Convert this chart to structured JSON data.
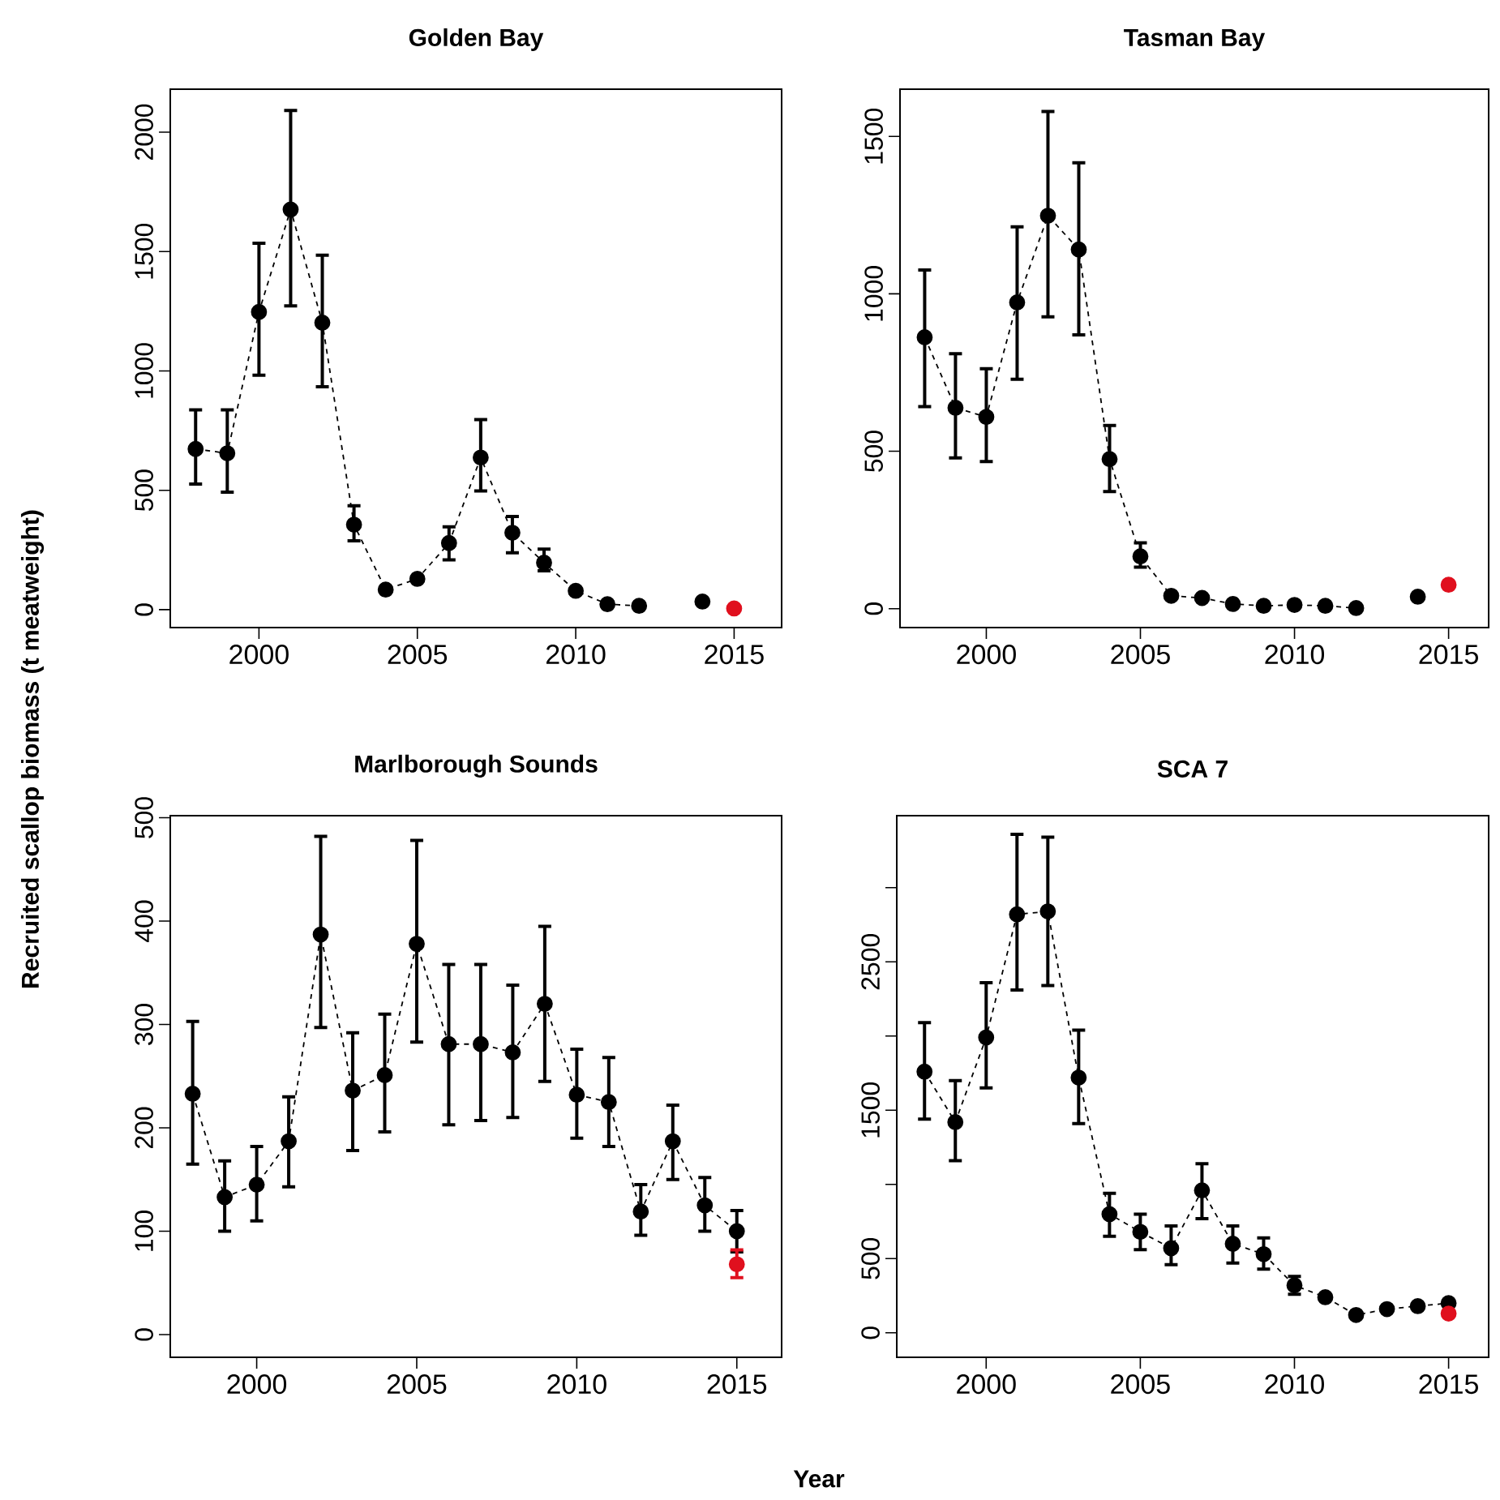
{
  "chart_data": [
    {
      "type": "line",
      "title": "Golden Bay",
      "ylabel": "Recruited scallop biomass (t meatweight)",
      "marker": "circle",
      "line_style": "dashed",
      "xlim": [
        1997.2,
        2016.5
      ],
      "ylim": [
        -75,
        2180
      ],
      "xticks": [
        2000,
        2005,
        2010,
        2015
      ],
      "yticks": [
        0,
        500,
        1000,
        1500,
        2000
      ],
      "series": [
        {
          "color": "#000000",
          "x": [
            1998,
            1999,
            2000,
            2001,
            2002,
            2003,
            2004,
            2005,
            2006,
            2007,
            2008,
            2009,
            2010,
            2011,
            2012,
            2013,
            2014
          ],
          "values": [
            673,
            655,
            1247,
            1676,
            1202,
            356,
            84,
            129,
            279,
            637,
            322,
            197,
            79,
            23,
            16,
            null,
            34
          ],
          "errors": [
            [
              526,
              837
            ],
            [
              492,
              837
            ],
            [
              982,
              1535
            ],
            [
              1272,
              2091
            ],
            [
              934,
              1485
            ],
            [
              288,
              435
            ],
            null,
            null,
            [
              209,
              347
            ],
            [
              497,
              796
            ],
            [
              238,
              390
            ],
            [
              163,
              254
            ],
            null,
            null,
            null,
            null,
            null
          ]
        },
        {
          "type": "scatter",
          "color": "#e0101e",
          "x": [
            2015
          ],
          "values": [
            5
          ]
        }
      ]
    },
    {
      "type": "line",
      "title": "Tasman Bay",
      "marker": "circle",
      "line_style": "dashed",
      "xlim": [
        1997.2,
        2016.3
      ],
      "ylim": [
        -60,
        1650
      ],
      "xticks": [
        2000,
        2005,
        2010,
        2015
      ],
      "yticks": [
        0,
        500,
        1000,
        1500
      ],
      "series": [
        {
          "color": "#000000",
          "x": [
            1998,
            1999,
            2000,
            2001,
            2002,
            2003,
            2004,
            2005,
            2006,
            2007,
            2008,
            2009,
            2010,
            2011,
            2012,
            2013,
            2014
          ],
          "values": [
            862,
            638,
            609,
            973,
            1248,
            1141,
            475,
            166,
            41,
            34,
            15,
            9,
            12,
            9,
            2,
            null,
            38
          ],
          "errors": [
            [
              642,
              1076
            ],
            [
              479,
              810
            ],
            [
              467,
              762
            ],
            [
              729,
              1213
            ],
            [
              927,
              1579
            ],
            [
              870,
              1416
            ],
            [
              372,
              582
            ],
            [
              132,
              209
            ],
            null,
            null,
            null,
            null,
            null,
            null,
            null,
            null,
            null
          ]
        },
        {
          "type": "scatter",
          "color": "#e0101e",
          "x": [
            2015
          ],
          "values": [
            76
          ]
        }
      ]
    },
    {
      "type": "line",
      "title": "Marlborough Sounds",
      "xlabel": "Year",
      "marker": "circle",
      "line_style": "dashed",
      "xlim": [
        1997.3,
        2016.4
      ],
      "ylim": [
        -22,
        502
      ],
      "xticks": [
        2000,
        2005,
        2010,
        2015
      ],
      "yticks": [
        0,
        100,
        200,
        300,
        400,
        500
      ],
      "series": [
        {
          "color": "#000000",
          "x": [
            1998,
            1999,
            2000,
            2001,
            2002,
            2003,
            2004,
            2005,
            2006,
            2007,
            2008,
            2009,
            2010,
            2011,
            2012,
            2013,
            2014,
            2015
          ],
          "values": [
            233,
            133,
            145,
            187,
            387,
            236,
            251,
            378,
            281,
            281,
            273,
            320,
            232,
            225,
            119,
            187,
            125,
            100
          ],
          "errors": [
            [
              165,
              303
            ],
            [
              100,
              168
            ],
            [
              110,
              182
            ],
            [
              143,
              230
            ],
            [
              297,
              482
            ],
            [
              178,
              292
            ],
            [
              196,
              310
            ],
            [
              283,
              478
            ],
            [
              203,
              358
            ],
            [
              207,
              358
            ],
            [
              210,
              338
            ],
            [
              245,
              395
            ],
            [
              190,
              276
            ],
            [
              182,
              268
            ],
            [
              96,
              145
            ],
            [
              150,
              222
            ],
            [
              100,
              152
            ],
            [
              80,
              120
            ]
          ]
        },
        {
          "type": "scatter",
          "color": "#e0101e",
          "x": [
            2015
          ],
          "values": [
            68
          ],
          "errors": [
            [
              55,
              82
            ]
          ]
        }
      ]
    },
    {
      "type": "line",
      "title": "SCA 7",
      "marker": "circle",
      "line_style": "dashed",
      "xlim": [
        1997.1,
        2016.3
      ],
      "ylim": [
        -165,
        3485
      ],
      "xticks": [
        2000,
        2005,
        2010,
        2015
      ],
      "yticks": [
        0,
        500,
        {
          "value": 1000,
          "label": null
        },
        1500,
        {
          "value": 2000,
          "label": null
        },
        2500,
        {
          "value": 3000,
          "label": null
        }
      ],
      "series": [
        {
          "color": "#000000",
          "x": [
            1998,
            1999,
            2000,
            2001,
            2002,
            2003,
            2004,
            2005,
            2006,
            2007,
            2008,
            2009,
            2010,
            2011,
            2012,
            2013,
            2014,
            2015
          ],
          "values": [
            1760,
            1420,
            1990,
            2820,
            2840,
            1720,
            800,
            680,
            570,
            960,
            600,
            530,
            320,
            240,
            120,
            160,
            180,
            200
          ],
          "errors": [
            [
              1440,
              2090
            ],
            [
              1160,
              1700
            ],
            [
              1650,
              2360
            ],
            [
              2310,
              3360
            ],
            [
              2340,
              3340
            ],
            [
              1410,
              2040
            ],
            [
              650,
              940
            ],
            [
              560,
              800
            ],
            [
              460,
              720
            ],
            [
              770,
              1140
            ],
            [
              470,
              720
            ],
            [
              430,
              640
            ],
            [
              260,
              380
            ],
            null,
            null,
            null,
            null,
            null
          ]
        },
        {
          "type": "scatter",
          "color": "#e0101e",
          "x": [
            2015
          ],
          "values": [
            130
          ]
        }
      ]
    }
  ]
}
